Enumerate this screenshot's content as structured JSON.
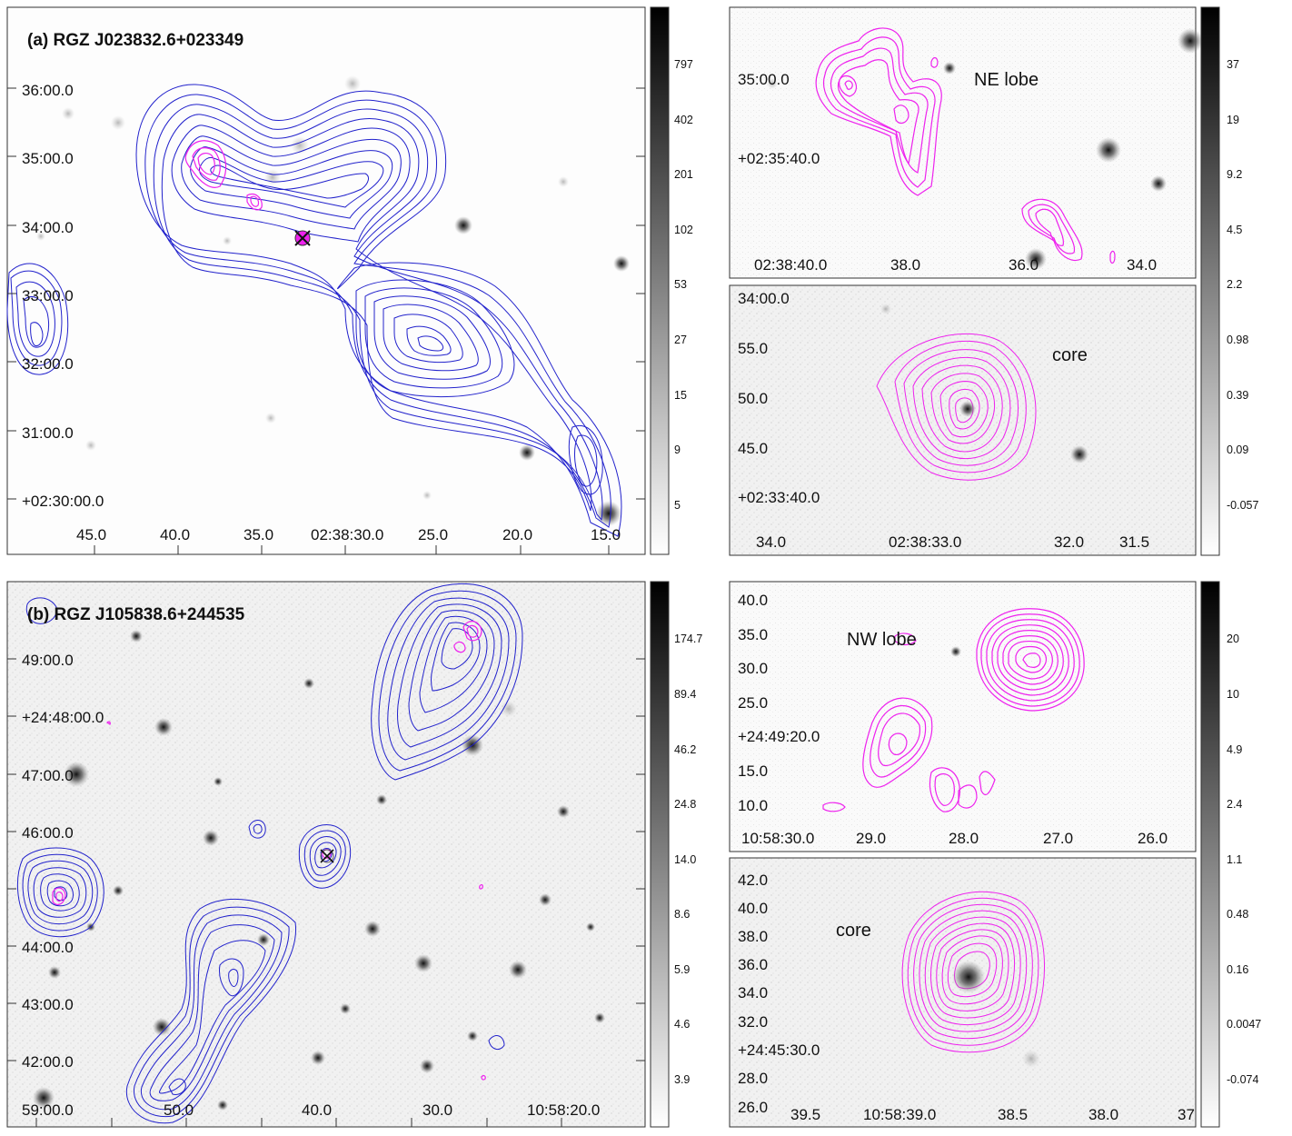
{
  "panel_a": {
    "title": "(a) RGZ J023832.6+023349",
    "main": {
      "dec_ticks": [
        "36:00.0",
        "35:00.0",
        "34:00.0",
        "33:00.0",
        "32:00.0",
        "31:00.0",
        "+02:30:00.0"
      ],
      "ra_ticks": [
        "45.0",
        "40.0",
        "35.0",
        "02:38:30.0",
        "25.0",
        "20.0",
        "15.0"
      ],
      "colorbar": [
        "797",
        "402",
        "201",
        "102",
        "53",
        "27",
        "15",
        "9",
        "5"
      ]
    },
    "lobe": {
      "label": "NE lobe",
      "dec_ticks": [
        "35:00.0",
        "+02:35:40.0"
      ],
      "ra_ticks": [
        "02:38:40.0",
        "38.0",
        "36.0",
        "34.0"
      ]
    },
    "core": {
      "label": "core",
      "dec_ticks": [
        "34:00.0",
        "55.0",
        "50.0",
        "45.0",
        "+02:33:40.0"
      ],
      "ra_ticks": [
        "34.0",
        "02:38:33.0",
        "32.0",
        "31.5"
      ]
    },
    "zoom_colorbar": [
      "37",
      "19",
      "9.2",
      "4.5",
      "2.2",
      "0.98",
      "0.39",
      "0.09",
      "-0.057"
    ]
  },
  "panel_b": {
    "title": "(b) RGZ J105838.6+244535",
    "main": {
      "dec_ticks": [
        "49:00.0",
        "+24:48:00.0",
        "47:00.0",
        "46:00.0",
        "44:00.0",
        "43:00.0",
        "42:00.0"
      ],
      "ra_ticks": [
        "59:00.0",
        "50.0",
        "40.0",
        "30.0",
        "10:58:20.0"
      ],
      "colorbar": [
        "174.7",
        "89.4",
        "46.2",
        "24.8",
        "14.0",
        "8.6",
        "5.9",
        "4.6",
        "3.9"
      ]
    },
    "lobe": {
      "label": "NW lobe",
      "dec_ticks": [
        "40.0",
        "35.0",
        "30.0",
        "25.0",
        "+24:49:20.0",
        "15.0",
        "10.0"
      ],
      "ra_ticks": [
        "10:58:30.0",
        "29.0",
        "28.0",
        "27.0",
        "26.0"
      ]
    },
    "core": {
      "label": "core",
      "dec_ticks": [
        "42.0",
        "40.0",
        "38.0",
        "36.0",
        "34.0",
        "32.0",
        "+24:45:30.0",
        "28.0",
        "26.0"
      ],
      "ra_ticks": [
        "39.5",
        "10:58:39.0",
        "38.5",
        "38.0",
        "37"
      ]
    },
    "zoom_colorbar": [
      "20",
      "10",
      "4.9",
      "2.4",
      "1.1",
      "0.48",
      "0.16",
      "0.0047",
      "-0.074"
    ]
  },
  "colors": {
    "radio_contour": "#2222cc",
    "ir_contour": "#ee22ee",
    "host_marker": "#111111"
  }
}
